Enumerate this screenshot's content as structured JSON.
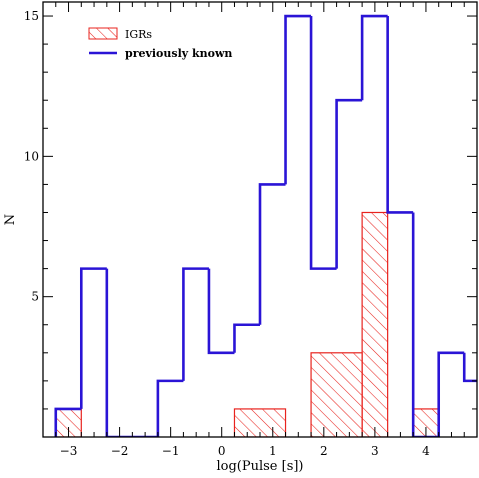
{
  "chart_data": {
    "type": "histogram",
    "xlabel": "log(Pulse [s])",
    "ylabel": "N",
    "xlim": [
      -3.5,
      5.0
    ],
    "ylim": [
      0,
      15.5
    ],
    "x_ticks": [
      -3,
      -2,
      -1,
      0,
      1,
      2,
      3,
      4
    ],
    "y_ticks": [
      5,
      10,
      15
    ],
    "legend_position": "top-left",
    "grid": false,
    "series": [
      {
        "name": "IGRs",
        "style": "hatched",
        "color": "#e8231e",
        "bins": [
          {
            "x0": -3.25,
            "x1": -2.75,
            "count": 1
          },
          {
            "x0": 0.25,
            "x1": 1.25,
            "count": 1
          },
          {
            "x0": 1.75,
            "x1": 2.75,
            "count": 3
          },
          {
            "x0": 2.75,
            "x1": 3.25,
            "count": 8
          },
          {
            "x0": 3.75,
            "x1": 4.25,
            "count": 1
          }
        ]
      },
      {
        "name": "previously known",
        "style": "step",
        "color": "#2a14d6",
        "bins": [
          {
            "x0": -3.25,
            "x1": -2.75,
            "count": 1
          },
          {
            "x0": -2.75,
            "x1": -2.25,
            "count": 6
          },
          {
            "x0": -2.25,
            "x1": -1.75,
            "count": 0
          },
          {
            "x0": -1.75,
            "x1": -1.25,
            "count": 0
          },
          {
            "x0": -1.25,
            "x1": -0.75,
            "count": 2
          },
          {
            "x0": -0.75,
            "x1": -0.25,
            "count": 6
          },
          {
            "x0": -0.25,
            "x1": 0.25,
            "count": 3
          },
          {
            "x0": 0.25,
            "x1": 0.75,
            "count": 4
          },
          {
            "x0": 0.75,
            "x1": 1.25,
            "count": 9
          },
          {
            "x0": 1.25,
            "x1": 1.75,
            "count": 15
          },
          {
            "x0": 1.75,
            "x1": 2.25,
            "count": 6
          },
          {
            "x0": 2.25,
            "x1": 2.75,
            "count": 12
          },
          {
            "x0": 2.75,
            "x1": 3.25,
            "count": 15
          },
          {
            "x0": 3.25,
            "x1": 3.75,
            "count": 8
          },
          {
            "x0": 3.75,
            "x1": 4.25,
            "count": 0
          },
          {
            "x0": 4.25,
            "x1": 4.75,
            "count": 3
          },
          {
            "x0": 4.75,
            "x1": 5.25,
            "count": 2
          }
        ]
      }
    ]
  }
}
